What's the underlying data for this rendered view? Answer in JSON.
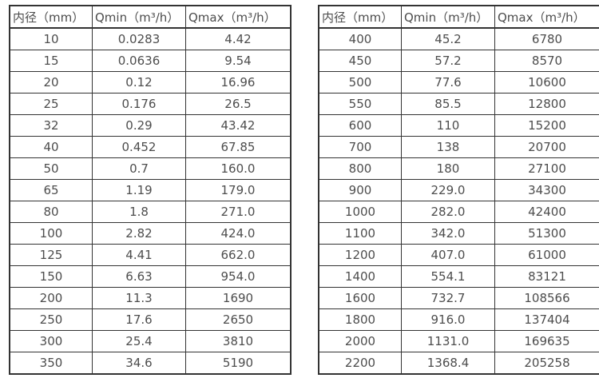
{
  "colors": {
    "background": "#ffffff",
    "border": "#333333",
    "text": "#4d4d4d"
  },
  "tables": [
    {
      "name": "flow-table-small-diameters",
      "headers": [
        "内径（mm）",
        "Qmin（m³/h）",
        "Qmax（m³/h）"
      ],
      "rows": [
        [
          "10",
          "0.0283",
          "4.42"
        ],
        [
          "15",
          "0.0636",
          "9.54"
        ],
        [
          "20",
          "0.12",
          "16.96"
        ],
        [
          "25",
          "0.176",
          "26.5"
        ],
        [
          "32",
          "0.29",
          "43.42"
        ],
        [
          "40",
          "0.452",
          "67.85"
        ],
        [
          "50",
          "0.7",
          "160.0"
        ],
        [
          "65",
          "1.19",
          "179.0"
        ],
        [
          "80",
          "1.8",
          "271.0"
        ],
        [
          "100",
          "2.82",
          "424.0"
        ],
        [
          "125",
          "4.41",
          "662.0"
        ],
        [
          "150",
          "6.63",
          "954.0"
        ],
        [
          "200",
          "11.3",
          "1690"
        ],
        [
          "250",
          "17.6",
          "2650"
        ],
        [
          "300",
          "25.4",
          "3810"
        ],
        [
          "350",
          "34.6",
          "5190"
        ]
      ]
    },
    {
      "name": "flow-table-large-diameters",
      "headers": [
        "内径（mm）",
        "Qmin（m³/h）",
        "Qmax（m³/h）"
      ],
      "rows": [
        [
          "400",
          "45.2",
          "6780"
        ],
        [
          "450",
          "57.2",
          "8570"
        ],
        [
          "500",
          "77.6",
          "10600"
        ],
        [
          "550",
          "85.5",
          "12800"
        ],
        [
          "600",
          "110",
          "15200"
        ],
        [
          "700",
          "138",
          "20700"
        ],
        [
          "800",
          "180",
          "27100"
        ],
        [
          "900",
          "229.0",
          "34300"
        ],
        [
          "1000",
          "282.0",
          "42400"
        ],
        [
          "1100",
          "342.0",
          "51300"
        ],
        [
          "1200",
          "407.0",
          "61000"
        ],
        [
          "1400",
          "554.1",
          "83121"
        ],
        [
          "1600",
          "732.7",
          "108566"
        ],
        [
          "1800",
          "916.0",
          "137404"
        ],
        [
          "2000",
          "1131.0",
          "169635"
        ],
        [
          "2200",
          "1368.4",
          "205258"
        ]
      ]
    }
  ]
}
